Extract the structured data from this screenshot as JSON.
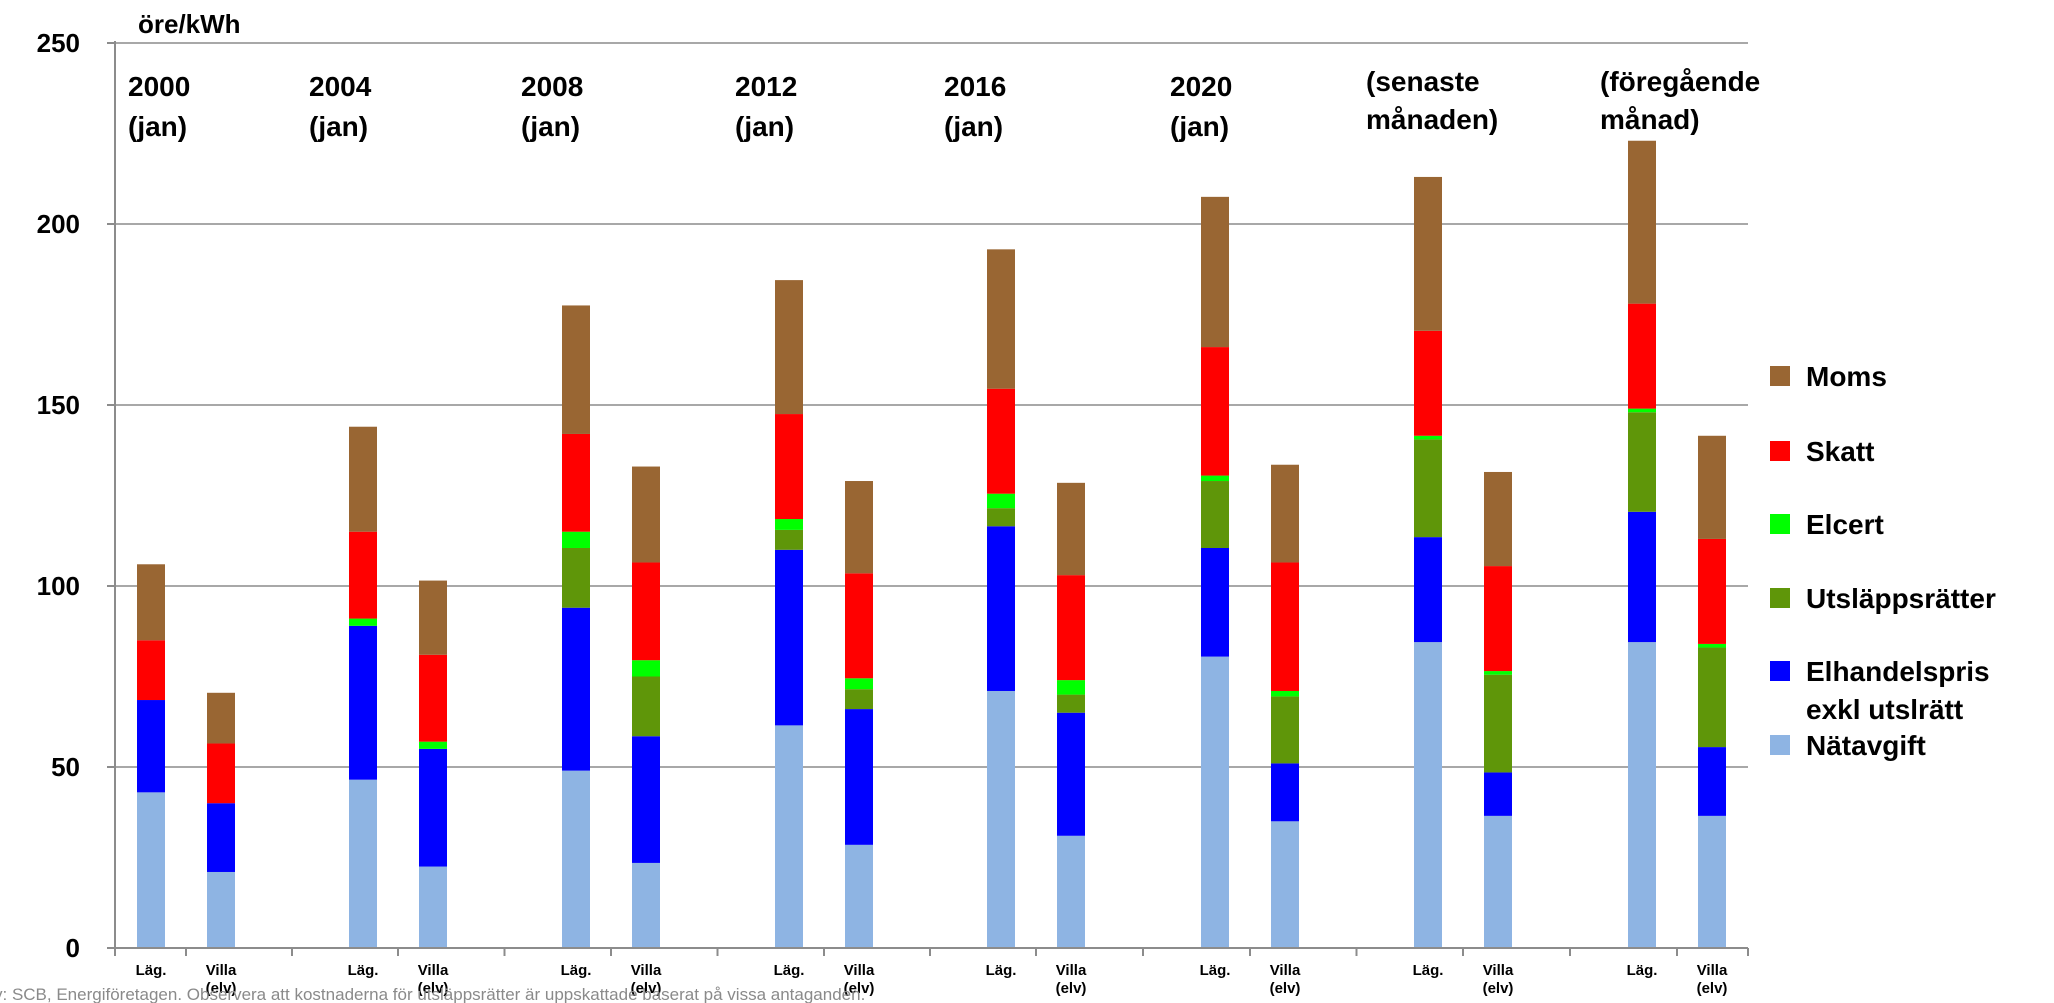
{
  "chart_data": {
    "type": "bar",
    "stacked": true,
    "ylabel": "öre/kWh",
    "ylim": [
      0,
      250
    ],
    "yticks": [
      "0",
      "50",
      "100",
      "150",
      "200",
      "250"
    ],
    "grid": true,
    "legend_position": "right",
    "groups": [
      {
        "label": [
          "2000",
          "(jan)"
        ]
      },
      {
        "label": [
          "2004",
          "(jan)"
        ]
      },
      {
        "label": [
          "2008",
          "(jan)"
        ]
      },
      {
        "label": [
          "2012",
          "(jan)"
        ]
      },
      {
        "label": [
          "2016",
          "(jan)"
        ]
      },
      {
        "label": [
          "2020",
          "(jan)"
        ]
      },
      {
        "label": [
          "(senaste",
          "månaden)"
        ]
      },
      {
        "label": [
          "(föregående",
          "månad)"
        ]
      }
    ],
    "categories": [
      [
        "Läg."
      ],
      [
        "Villa",
        "(elv)"
      ],
      [
        "Läg."
      ],
      [
        "Villa",
        "(elv)"
      ],
      [
        "Läg."
      ],
      [
        "Villa",
        "(elv)"
      ],
      [
        "Läg."
      ],
      [
        "Villa",
        "(elv)"
      ],
      [
        "Läg."
      ],
      [
        "Villa",
        "(elv)"
      ],
      [
        "Läg."
      ],
      [
        "Villa",
        "(elv)"
      ],
      [
        "Läg."
      ],
      [
        "Villa",
        "(elv)"
      ],
      [
        "Läg."
      ],
      [
        "Villa",
        "(elv)"
      ]
    ],
    "series": [
      {
        "name": "Nätavgift",
        "color": "#8eb4e3",
        "values": [
          43,
          21,
          46.5,
          22.5,
          49,
          23.5,
          61.5,
          28.5,
          71,
          31,
          80.5,
          35,
          84.5,
          36.5,
          84.5,
          36.5
        ]
      },
      {
        "name": "Elhandelspris exkl utslrätt",
        "color": "#0000ff",
        "values": [
          25.5,
          19,
          42.5,
          32.5,
          45,
          35,
          48.5,
          37.5,
          45.5,
          34,
          30,
          16,
          29,
          12,
          36,
          19
        ]
      },
      {
        "name": "Utsläppsrätter",
        "color": "#5f9609",
        "values": [
          0,
          0,
          0,
          0,
          16.5,
          16.5,
          5.5,
          5.5,
          5,
          5,
          18.5,
          18.5,
          27,
          27,
          27.5,
          27.5
        ]
      },
      {
        "name": "Elcert",
        "color": "#00ff00",
        "values": [
          0,
          0,
          2,
          2,
          4.5,
          4.5,
          3,
          3,
          4,
          4,
          1.5,
          1.5,
          1,
          1,
          1,
          1
        ]
      },
      {
        "name": "Skatt",
        "color": "#ff0000",
        "values": [
          16.5,
          16.5,
          24,
          24,
          27,
          27,
          29,
          29,
          29,
          29,
          35.5,
          35.5,
          29,
          29,
          29,
          29
        ]
      },
      {
        "name": "Moms",
        "color": "#996633",
        "values": [
          21,
          14,
          29,
          20.5,
          35.5,
          26.5,
          37,
          25.5,
          38.5,
          25.5,
          41.5,
          27,
          42.5,
          26,
          45,
          28.5
        ]
      }
    ],
    "legend": [
      {
        "lines": [
          "Moms"
        ],
        "color": "#996633"
      },
      {
        "lines": [
          "Skatt"
        ],
        "color": "#ff0000"
      },
      {
        "lines": [
          "Elcert"
        ],
        "color": "#00ff00"
      },
      {
        "lines": [
          "Utsläppsrätter"
        ],
        "color": "#5f9609"
      },
      {
        "lines": [
          "Elhandelspris",
          "exkl utslrätt"
        ],
        "color": "#0000ff"
      },
      {
        "lines": [
          "Nätavgift"
        ],
        "color": "#8eb4e3"
      }
    ]
  },
  "footnote": "y: SCB, Energiföretagen. Observera att kostnaderna för utsläppsrätter är uppskattade baserat på vissa antaganden."
}
